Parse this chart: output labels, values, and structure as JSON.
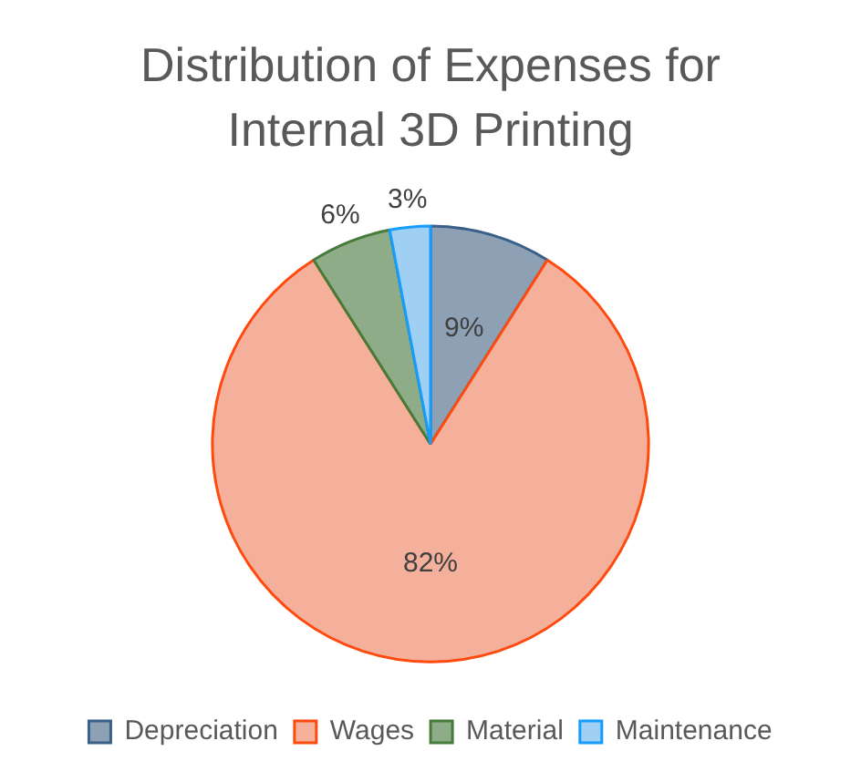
{
  "chart_data": {
    "type": "pie",
    "title": "Distribution of Expenses for Internal 3D Printing",
    "categories": [
      "Depreciation",
      "Wages",
      "Material",
      "Maintenance"
    ],
    "values": [
      9,
      82,
      6,
      3
    ],
    "colors": [
      "#8da0b4",
      "#f4b09a",
      "#8fac88",
      "#9fd0f4"
    ],
    "value_labels": [
      "9%",
      "82%",
      "6%",
      "3%"
    ],
    "legend": "bottom"
  }
}
